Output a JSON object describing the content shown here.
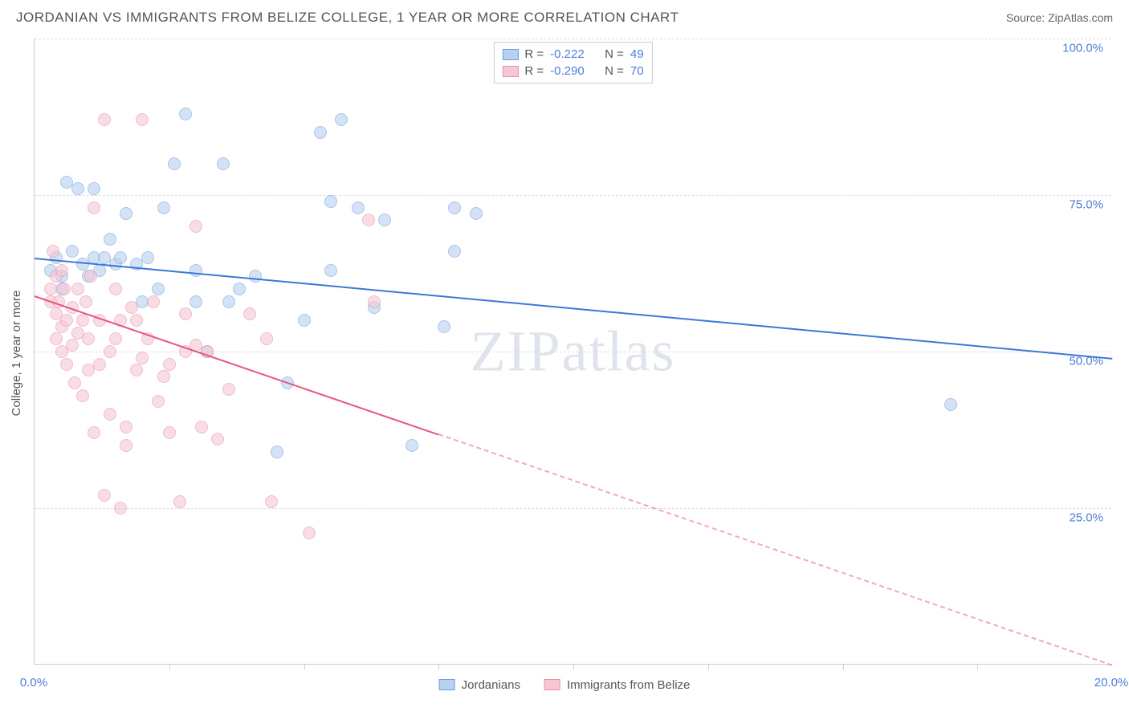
{
  "title": "JORDANIAN VS IMMIGRANTS FROM BELIZE COLLEGE, 1 YEAR OR MORE CORRELATION CHART",
  "source": "Source: ZipAtlas.com",
  "watermark": "ZIPatlas",
  "y_axis_label": "College, 1 year or more",
  "chart": {
    "type": "scatter",
    "background_color": "#ffffff",
    "grid_color": "#dddddd",
    "axis_color": "#cccccc",
    "tick_label_color": "#4a7dd8",
    "xlim": [
      0,
      20
    ],
    "ylim": [
      0,
      100
    ],
    "y_ticks": [
      {
        "value": 25,
        "label": "25.0%"
      },
      {
        "value": 50,
        "label": "50.0%"
      },
      {
        "value": 75,
        "label": "75.0%"
      },
      {
        "value": 100,
        "label": "100.0%"
      }
    ],
    "x_tick_positions": [
      2.5,
      5.0,
      7.5,
      10.0,
      12.5,
      15.0,
      17.5
    ],
    "x_axis_labels": {
      "left": "0.0%",
      "right": "20.0%"
    },
    "series": [
      {
        "name": "Jordanians",
        "color_fill": "#b9d0f0",
        "color_stroke": "#6f9fe0",
        "line_color": "#3c78d8",
        "r_value": "-0.222",
        "n_value": "49",
        "trend": {
          "x1": 0,
          "y1": 65,
          "x2": 20,
          "y2": 49,
          "dash_after_x": null
        },
        "points": [
          [
            0.3,
            63
          ],
          [
            0.4,
            65
          ],
          [
            0.5,
            62
          ],
          [
            0.5,
            60
          ],
          [
            0.6,
            77
          ],
          [
            0.7,
            66
          ],
          [
            0.8,
            76
          ],
          [
            0.9,
            64
          ],
          [
            1.0,
            62
          ],
          [
            1.1,
            65
          ],
          [
            1.1,
            76
          ],
          [
            1.2,
            63
          ],
          [
            1.3,
            65
          ],
          [
            1.4,
            68
          ],
          [
            1.5,
            64
          ],
          [
            1.6,
            65
          ],
          [
            1.7,
            72
          ],
          [
            1.9,
            64
          ],
          [
            2.0,
            58
          ],
          [
            2.1,
            65
          ],
          [
            2.3,
            60
          ],
          [
            2.4,
            73
          ],
          [
            2.6,
            80
          ],
          [
            2.8,
            88
          ],
          [
            3.0,
            58
          ],
          [
            3.0,
            63
          ],
          [
            3.2,
            50
          ],
          [
            3.5,
            80
          ],
          [
            3.6,
            58
          ],
          [
            3.8,
            60
          ],
          [
            4.1,
            62
          ],
          [
            4.5,
            34
          ],
          [
            4.7,
            45
          ],
          [
            5.0,
            55
          ],
          [
            5.3,
            85
          ],
          [
            5.5,
            63
          ],
          [
            5.5,
            74
          ],
          [
            5.7,
            87
          ],
          [
            6.0,
            73
          ],
          [
            6.3,
            57
          ],
          [
            6.5,
            71
          ],
          [
            7.0,
            35
          ],
          [
            7.6,
            54
          ],
          [
            7.8,
            66
          ],
          [
            7.8,
            73
          ],
          [
            8.2,
            72
          ],
          [
            17.0,
            41.5
          ]
        ]
      },
      {
        "name": "Immigrants from Belize",
        "color_fill": "#f6c8d4",
        "color_stroke": "#e98fa9",
        "line_color": "#e75480",
        "r_value": "-0.290",
        "n_value": "70",
        "trend": {
          "x1": 0,
          "y1": 59,
          "x2": 20,
          "y2": 0,
          "dash_after_x": 7.5
        },
        "points": [
          [
            0.3,
            58
          ],
          [
            0.3,
            60
          ],
          [
            0.35,
            66
          ],
          [
            0.4,
            56
          ],
          [
            0.4,
            52
          ],
          [
            0.4,
            62
          ],
          [
            0.45,
            58
          ],
          [
            0.5,
            54
          ],
          [
            0.5,
            63
          ],
          [
            0.5,
            50
          ],
          [
            0.55,
            60
          ],
          [
            0.6,
            55
          ],
          [
            0.6,
            48
          ],
          [
            0.7,
            57
          ],
          [
            0.7,
            51
          ],
          [
            0.75,
            45
          ],
          [
            0.8,
            60
          ],
          [
            0.8,
            53
          ],
          [
            0.9,
            55
          ],
          [
            0.9,
            43
          ],
          [
            0.95,
            58
          ],
          [
            1.0,
            52
          ],
          [
            1.0,
            47
          ],
          [
            1.05,
            62
          ],
          [
            1.1,
            73
          ],
          [
            1.1,
            37
          ],
          [
            1.2,
            55
          ],
          [
            1.2,
            48
          ],
          [
            1.3,
            87
          ],
          [
            1.3,
            27
          ],
          [
            1.4,
            50
          ],
          [
            1.4,
            40
          ],
          [
            1.5,
            60
          ],
          [
            1.5,
            52
          ],
          [
            1.6,
            55
          ],
          [
            1.6,
            25
          ],
          [
            1.7,
            38
          ],
          [
            1.7,
            35
          ],
          [
            1.8,
            57
          ],
          [
            1.9,
            47
          ],
          [
            1.9,
            55
          ],
          [
            2.0,
            87
          ],
          [
            2.0,
            49
          ],
          [
            2.1,
            52
          ],
          [
            2.2,
            58
          ],
          [
            2.3,
            42
          ],
          [
            2.4,
            46
          ],
          [
            2.5,
            48
          ],
          [
            2.5,
            37
          ],
          [
            2.7,
            26
          ],
          [
            2.8,
            56
          ],
          [
            2.8,
            50
          ],
          [
            3.0,
            51
          ],
          [
            3.0,
            70
          ],
          [
            3.1,
            38
          ],
          [
            3.2,
            50
          ],
          [
            3.4,
            36
          ],
          [
            3.6,
            44
          ],
          [
            4.0,
            56
          ],
          [
            4.3,
            52
          ],
          [
            4.4,
            26
          ],
          [
            5.1,
            21
          ],
          [
            6.2,
            71
          ],
          [
            6.3,
            58
          ]
        ]
      }
    ]
  },
  "legend_top_labels": {
    "r": "R =",
    "n": "N ="
  },
  "legend_bottom": [
    "Jordanians",
    "Immigrants from Belize"
  ]
}
